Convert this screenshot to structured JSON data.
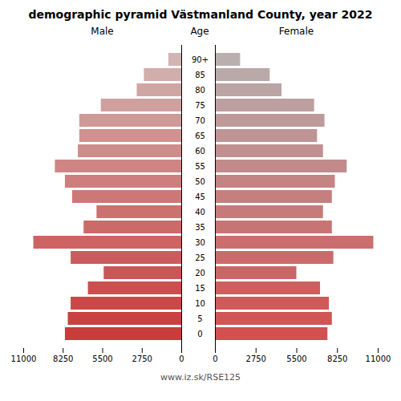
{
  "chart_data": {
    "type": "bar",
    "orientation": "horizontal",
    "title": "demographic pyramid Västmanland County, year 2022",
    "ylabel": "Age",
    "categories": [
      "0",
      "5",
      "10",
      "15",
      "20",
      "25",
      "30",
      "35",
      "40",
      "45",
      "50",
      "55",
      "60",
      "65",
      "70",
      "75",
      "80",
      "85",
      "90+"
    ],
    "series": [
      {
        "name": "Male",
        "values": [
          8100,
          7900,
          7700,
          6500,
          5400,
          7700,
          10300,
          6800,
          5900,
          7600,
          8100,
          8800,
          7200,
          7100,
          7100,
          5600,
          3100,
          2600,
          900
        ],
        "colors": [
          "#c83c3c",
          "#c84242",
          "#c94949",
          "#c9504f",
          "#ca5656",
          "#ca5d5c",
          "#cb6463",
          "#cb6a69",
          "#cc7170",
          "#cd7877",
          "#cd7e7d",
          "#ce8584",
          "#ce8c8a",
          "#cf9291",
          "#cf9997",
          "#d0a09e",
          "#d0a6a4",
          "#d1adab",
          "#d2b4b2"
        ]
      },
      {
        "name": "Female",
        "values": [
          7600,
          7900,
          7700,
          7100,
          5500,
          8000,
          10700,
          7900,
          7300,
          7900,
          8100,
          8900,
          7300,
          6900,
          7400,
          6700,
          4500,
          3700,
          1700
        ],
        "colors": [
          "#d25050",
          "#d05555",
          "#cf5a5a",
          "#cd5f5f",
          "#cc6565",
          "#cb6a6a",
          "#c96f6f",
          "#c87474",
          "#c67a7a",
          "#c57f7f",
          "#c48484",
          "#c28a8a",
          "#c18f8f",
          "#bf9494",
          "#be9999",
          "#bd9f9f",
          "#bba4a4",
          "#baa9a9",
          "#b9afaf"
        ]
      }
    ],
    "xlim": [
      0,
      11000
    ],
    "xticks": [
      0,
      2750,
      5500,
      8250,
      11000
    ],
    "grid": false,
    "annotations": [
      "www.iz.sk/RSE125"
    ]
  }
}
